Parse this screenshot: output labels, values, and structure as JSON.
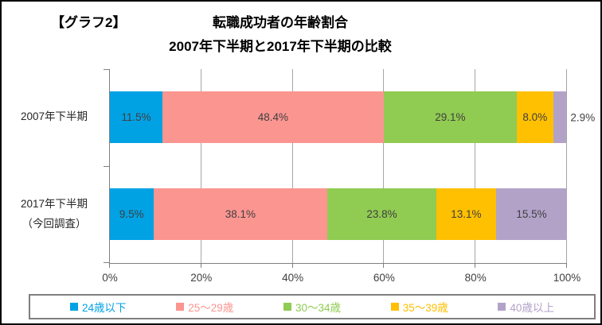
{
  "header": {
    "tag": "【グラフ2】"
  },
  "chart_data": {
    "type": "bar",
    "orientation": "horizontal",
    "stacked": true,
    "title": "転職成功者の年齢割合",
    "subtitle": "2007年下半期と2017年下半期の比較",
    "categories": [
      "2007年下半期",
      "2017年下半期（今回調査）"
    ],
    "category_display_lines": [
      [
        "2007年下半期"
      ],
      [
        "2017年下半期",
        "（今回調査）"
      ]
    ],
    "series": [
      {
        "name": "24歳以下",
        "color": "#00a2e4",
        "values": [
          11.5,
          9.5
        ]
      },
      {
        "name": "25～29歳",
        "color": "#fb9590",
        "values": [
          48.4,
          38.1
        ]
      },
      {
        "name": "30～34歳",
        "color": "#90cb52",
        "values": [
          29.1,
          23.8
        ]
      },
      {
        "name": "35～39歳",
        "color": "#ffc001",
        "values": [
          8.0,
          13.1
        ]
      },
      {
        "name": "40歳以上",
        "color": "#b2a2c8",
        "values": [
          2.9,
          15.5
        ]
      }
    ],
    "data_labels": [
      [
        "11.5%",
        "48.4%",
        "29.1%",
        "8.0%",
        "2.9%"
      ],
      [
        "9.5%",
        "38.1%",
        "23.8%",
        "13.1%",
        "15.5%"
      ]
    ],
    "x_ticks": [
      "0%",
      "20%",
      "40%",
      "60%",
      "80%",
      "100%"
    ],
    "xlim": [
      0,
      100
    ],
    "grid": true,
    "legend_position": "bottom",
    "axis_color": "#808080",
    "gridline_color": "#a6a6a6",
    "label_color": "#3f3f3f"
  }
}
